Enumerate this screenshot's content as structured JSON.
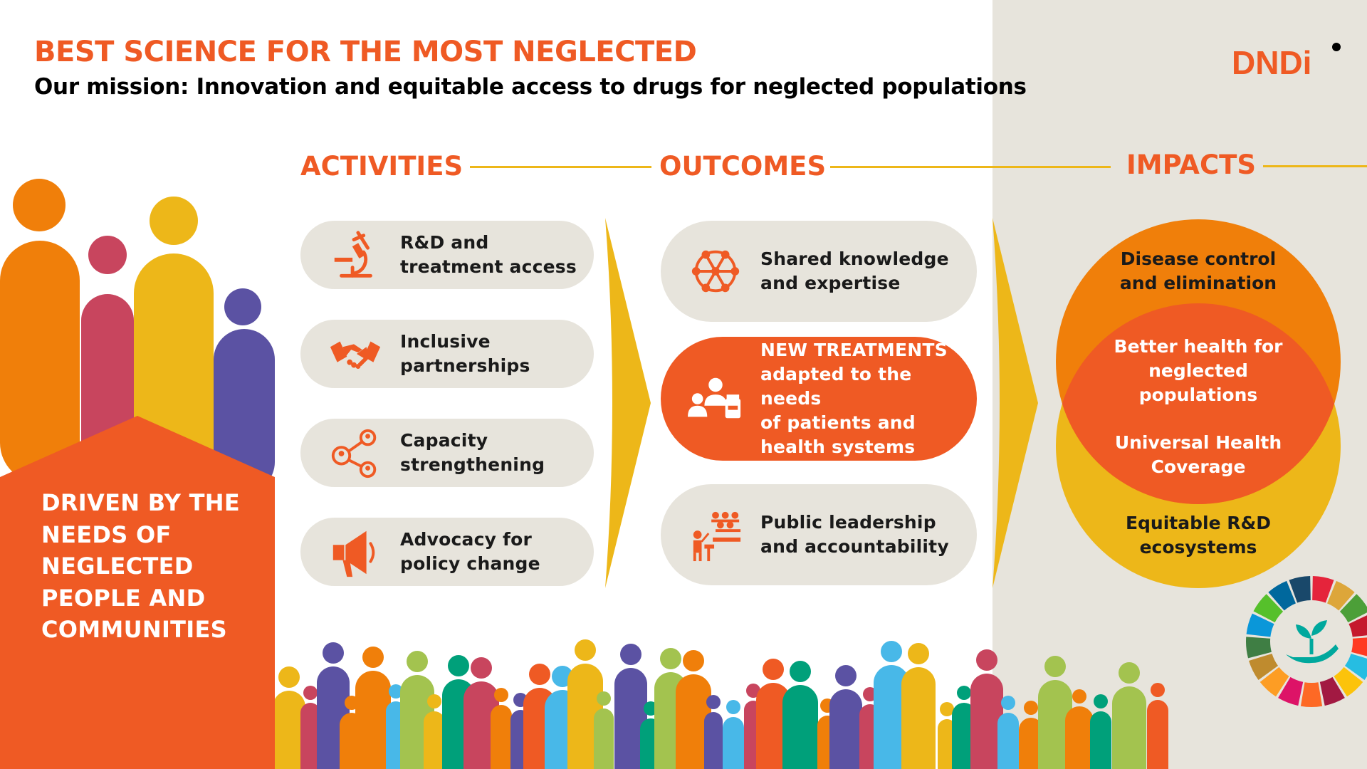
{
  "header": {
    "title": "BEST SCIENCE FOR THE MOST NEGLECTED",
    "subtitle": "Our mission: Innovation and equitable access to drugs for neglected populations",
    "logo_text": "DNDi"
  },
  "columns": {
    "activities": "ACTIVITIES",
    "outcomes": "OUTCOMES",
    "impacts": "IMPACTS"
  },
  "activities": [
    {
      "line1": "R&D and",
      "line2": "treatment access",
      "icon": "microscope-icon"
    },
    {
      "line1": "Inclusive",
      "line2": "partnerships",
      "icon": "handshake-icon"
    },
    {
      "line1": "Capacity",
      "line2": "strengthening",
      "icon": "network-people-icon"
    },
    {
      "line1": "Advocacy for",
      "line2": "policy change",
      "icon": "megaphone-icon"
    }
  ],
  "outcomes": [
    {
      "lines": [
        "Shared knowledge",
        "and expertise"
      ],
      "icon": "molecule-network-icon"
    },
    {
      "lines": [
        "NEW TREATMENTS",
        "adapted to the needs",
        "of patients and",
        "health systems"
      ],
      "icon": "patients-medicine-icon"
    },
    {
      "lines": [
        "Public leadership",
        "and accountability"
      ],
      "icon": "presentation-audience-icon"
    }
  ],
  "impacts": {
    "top": [
      "Disease control",
      "and elimination"
    ],
    "middle_1": [
      "Better health for",
      "neglected",
      "populations"
    ],
    "middle_2": [
      "Universal Health",
      "Coverage"
    ],
    "bottom": [
      "Equitable R&D",
      "ecosystems"
    ]
  },
  "side_panel": {
    "lines": [
      "DRIVEN BY THE",
      "NEEDS OF",
      "NEGLECTED",
      "PEOPLE AND",
      "COMMUNITIES"
    ]
  },
  "colors": {
    "orange": "#EF5A24",
    "dark_orange": "#F07F0A",
    "yellow": "#EDB719",
    "grey": "#E7E4DC",
    "magenta": "#C8455E",
    "purple": "#5B52A3"
  },
  "sdg_icon": "sdg-wheel-hand-plant-icon"
}
